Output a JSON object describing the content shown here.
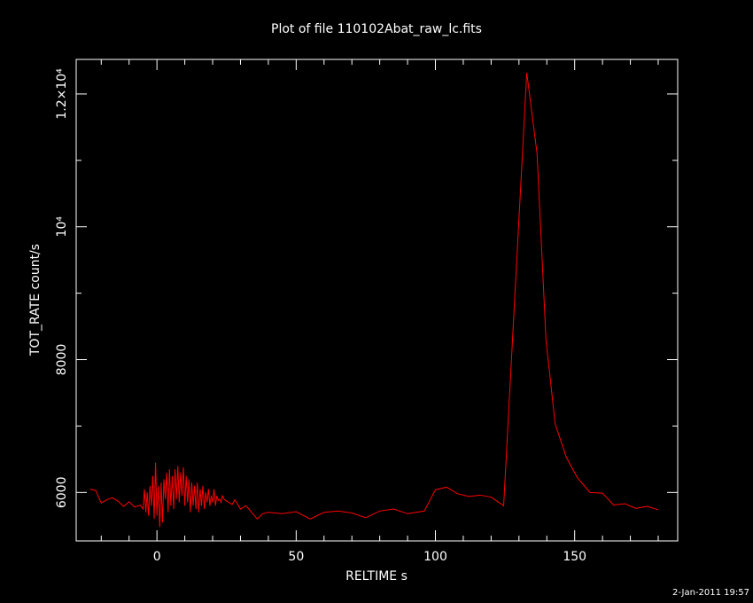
{
  "chart_data": {
    "type": "line",
    "title": "Plot of file 110102Abat_raw_lc.fits",
    "xlabel": "RELTIME  s",
    "ylabel": "TOT_RATE  count/s",
    "footer": "2-Jan-2011 19:57",
    "color": "#ff0000",
    "xlim": [
      -29,
      187
    ],
    "ylim": [
      5270,
      12520
    ],
    "xticks": [
      0,
      50,
      100,
      150
    ],
    "minor_xticks": [
      -20,
      -10,
      10,
      20,
      30,
      40,
      60,
      70,
      80,
      90,
      110,
      120,
      130,
      140,
      160,
      170,
      180
    ],
    "yticks": [
      6000,
      8000,
      {
        "value": 10000,
        "label": "10⁴"
      },
      {
        "value": 12000,
        "label": "1.2×10⁴"
      }
    ],
    "minor_yticks": [
      7000,
      9000,
      11000
    ],
    "x": [
      -24,
      -22,
      -20,
      -18,
      -16,
      -14,
      -12,
      -10,
      -8,
      -6,
      -5,
      -4.5,
      -4,
      -3.5,
      -3,
      -2.5,
      -2,
      -1.5,
      -1,
      -0.5,
      0,
      0.5,
      1,
      1.5,
      2,
      2.5,
      3,
      3.5,
      4,
      4.5,
      5,
      5.5,
      6,
      6.5,
      7,
      7.5,
      8,
      8.5,
      9,
      9.5,
      10,
      10.5,
      11,
      11.5,
      12,
      12.5,
      13,
      13.5,
      14,
      14.5,
      15,
      15.5,
      16,
      16.5,
      17,
      17.5,
      18,
      18.5,
      19,
      19.5,
      20,
      20.5,
      21,
      21.5,
      22,
      22.5,
      23,
      23.5,
      24,
      25,
      27,
      28,
      30,
      32,
      34,
      36,
      38,
      40,
      45,
      50,
      55,
      60,
      65,
      70,
      75,
      80,
      85,
      90,
      96,
      100,
      104,
      108,
      112,
      116,
      120,
      124.5,
      132.8,
      136.5,
      139.7,
      143,
      147,
      151,
      155.5,
      160,
      164,
      168,
      172,
      176,
      180
    ],
    "values": [
      6050,
      6030,
      5840,
      5890,
      5920,
      5870,
      5790,
      5860,
      5780,
      5810,
      5750,
      6050,
      5700,
      6000,
      5650,
      6100,
      5800,
      6250,
      5600,
      6450,
      5650,
      6100,
      5480,
      6150,
      5550,
      6200,
      5900,
      6300,
      5700,
      6350,
      5800,
      6250,
      5750,
      6350,
      5900,
      6400,
      5850,
      6300,
      5950,
      6380,
      5800,
      6250,
      5850,
      6200,
      5700,
      6150,
      5800,
      6100,
      5750,
      6150,
      5700,
      6050,
      5800,
      6100,
      5750,
      6000,
      5850,
      6050,
      5800,
      5950,
      5850,
      6050,
      5800,
      5950,
      5880,
      5900,
      5850,
      5950,
      5900,
      5870,
      5820,
      5890,
      5750,
      5800,
      5700,
      5600,
      5680,
      5700,
      5680,
      5710,
      5600,
      5700,
      5720,
      5690,
      5620,
      5720,
      5750,
      5680,
      5720,
      6040,
      6080,
      5980,
      5940,
      5960,
      5930,
      5800,
      12320,
      11100,
      8300,
      7030,
      6530,
      6220,
      6000,
      5990,
      5810,
      5830,
      5760,
      5790,
      5740
    ]
  }
}
